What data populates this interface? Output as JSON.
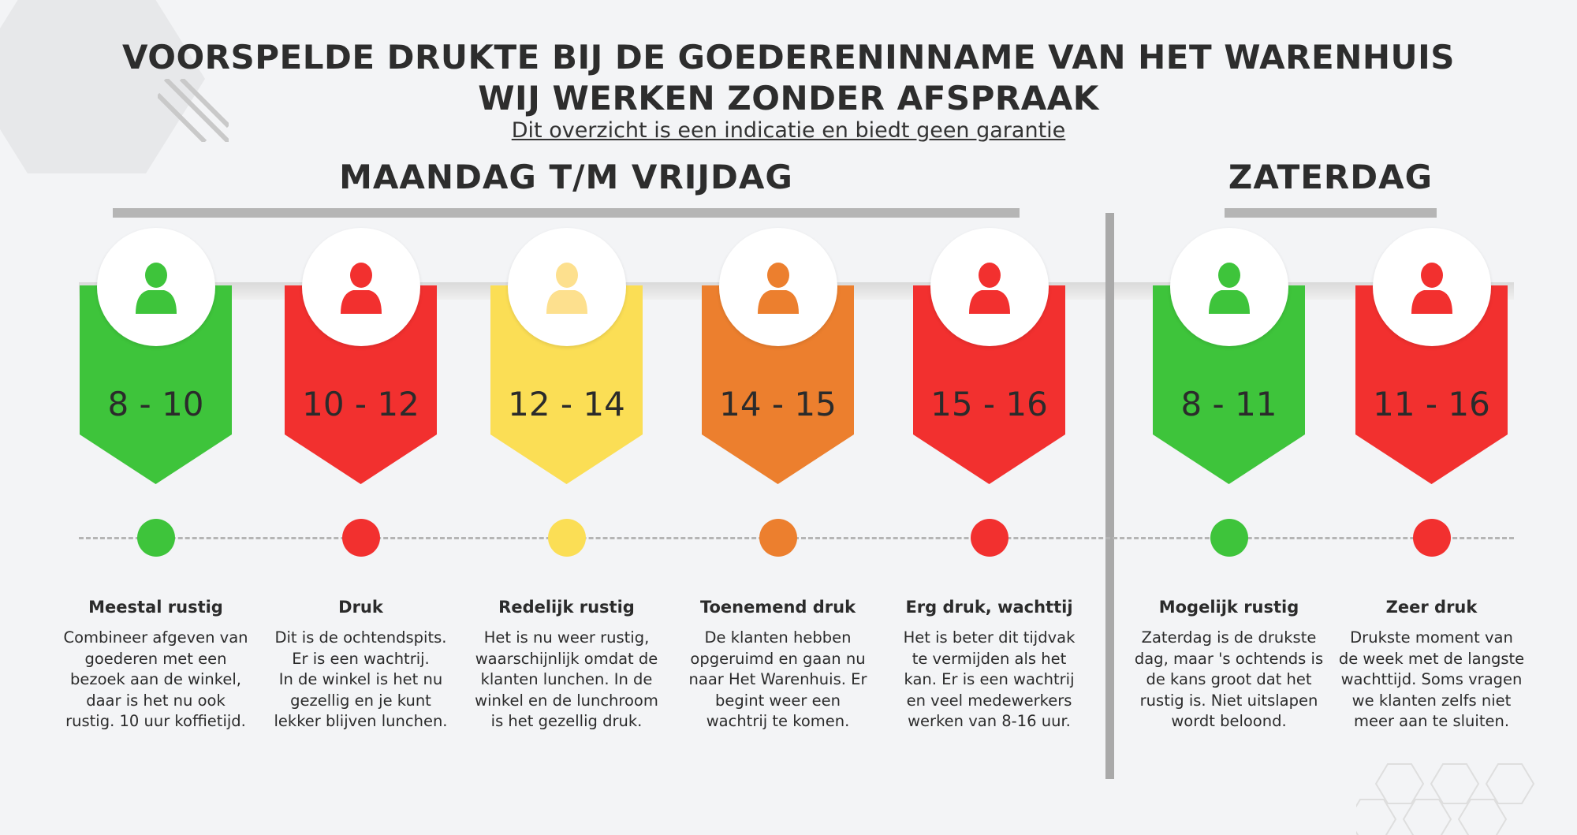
{
  "header": {
    "title_line1": "VOORSPELDE DRUKTE BIJ DE GOEDERENINNAME VAN HET WARENHUIS",
    "title_line2": "WIJ WERKEN ZONDER AFSPRAAK",
    "subtitle": "Dit overzicht is een indicatie en biedt geen garantie"
  },
  "sections": {
    "weekdays": "MAANDAG T/M VRIJDAG",
    "saturday": "ZATERDAG"
  },
  "colors": {
    "green": "#3ec43b",
    "red": "#f2302f",
    "yellow": "#fbde55",
    "orange": "#ec7f2e",
    "light_yellow_icon": "#fde08e"
  },
  "slots": [
    {
      "time": "8 - 10",
      "color": "#3ec43b",
      "icon": "person-icon",
      "label": "Meestal rustig",
      "desc": [
        "Combineer afgeven van",
        "goederen met een",
        "bezoek aan de winkel,",
        "daar is het nu ook",
        "rustig. 10 uur koffietijd."
      ]
    },
    {
      "time": "10 - 12",
      "color": "#f2302f",
      "icon": "person-icon",
      "label": "Druk",
      "desc": [
        "Dit is de ochtendspits.",
        "Er is een wachtrij.",
        "In de winkel is het nu",
        "gezellig en je kunt",
        "lekker blijven lunchen."
      ]
    },
    {
      "time": "12 - 14",
      "color": "#fbde55",
      "icon": "person-icon",
      "label": "Redelijk rustig",
      "desc": [
        "Het is nu weer rustig,",
        "waarschijnlijk omdat de",
        "klanten lunchen. In de",
        "winkel en de lunchroom",
        "is het gezellig druk."
      ]
    },
    {
      "time": "14 - 15",
      "color": "#ec7f2e",
      "icon": "person-icon",
      "label": "Toenemend druk",
      "desc": [
        "De klanten hebben",
        "opgeruimd en gaan nu",
        "naar Het Warenhuis. Er",
        "begint weer een",
        "wachtrij te komen."
      ]
    },
    {
      "time": "15 - 16",
      "color": "#f2302f",
      "icon": "person-icon",
      "label": "Erg druk, wachttij",
      "desc": [
        "Het is beter dit tijdvak",
        "te vermijden als het",
        "kan. Er is een wachtrij",
        "en veel medewerkers",
        "werken van 8-16 uur."
      ]
    },
    {
      "time": "8 - 11",
      "color": "#3ec43b",
      "icon": "person-icon",
      "label": "Mogelijk rustig",
      "desc": [
        "Zaterdag is de drukste",
        "dag, maar 's ochtends is",
        "de kans groot dat het",
        "rustig is. Niet uitslapen",
        "wordt beloond."
      ]
    },
    {
      "time": "11 - 16",
      "color": "#f2302f",
      "icon": "person-icon",
      "label": "Zeer druk",
      "desc": [
        "Drukste moment van",
        "de week met de langste",
        "wachttijd. Soms vragen",
        "we klanten zelfs niet",
        "meer aan te sluiten."
      ]
    }
  ]
}
